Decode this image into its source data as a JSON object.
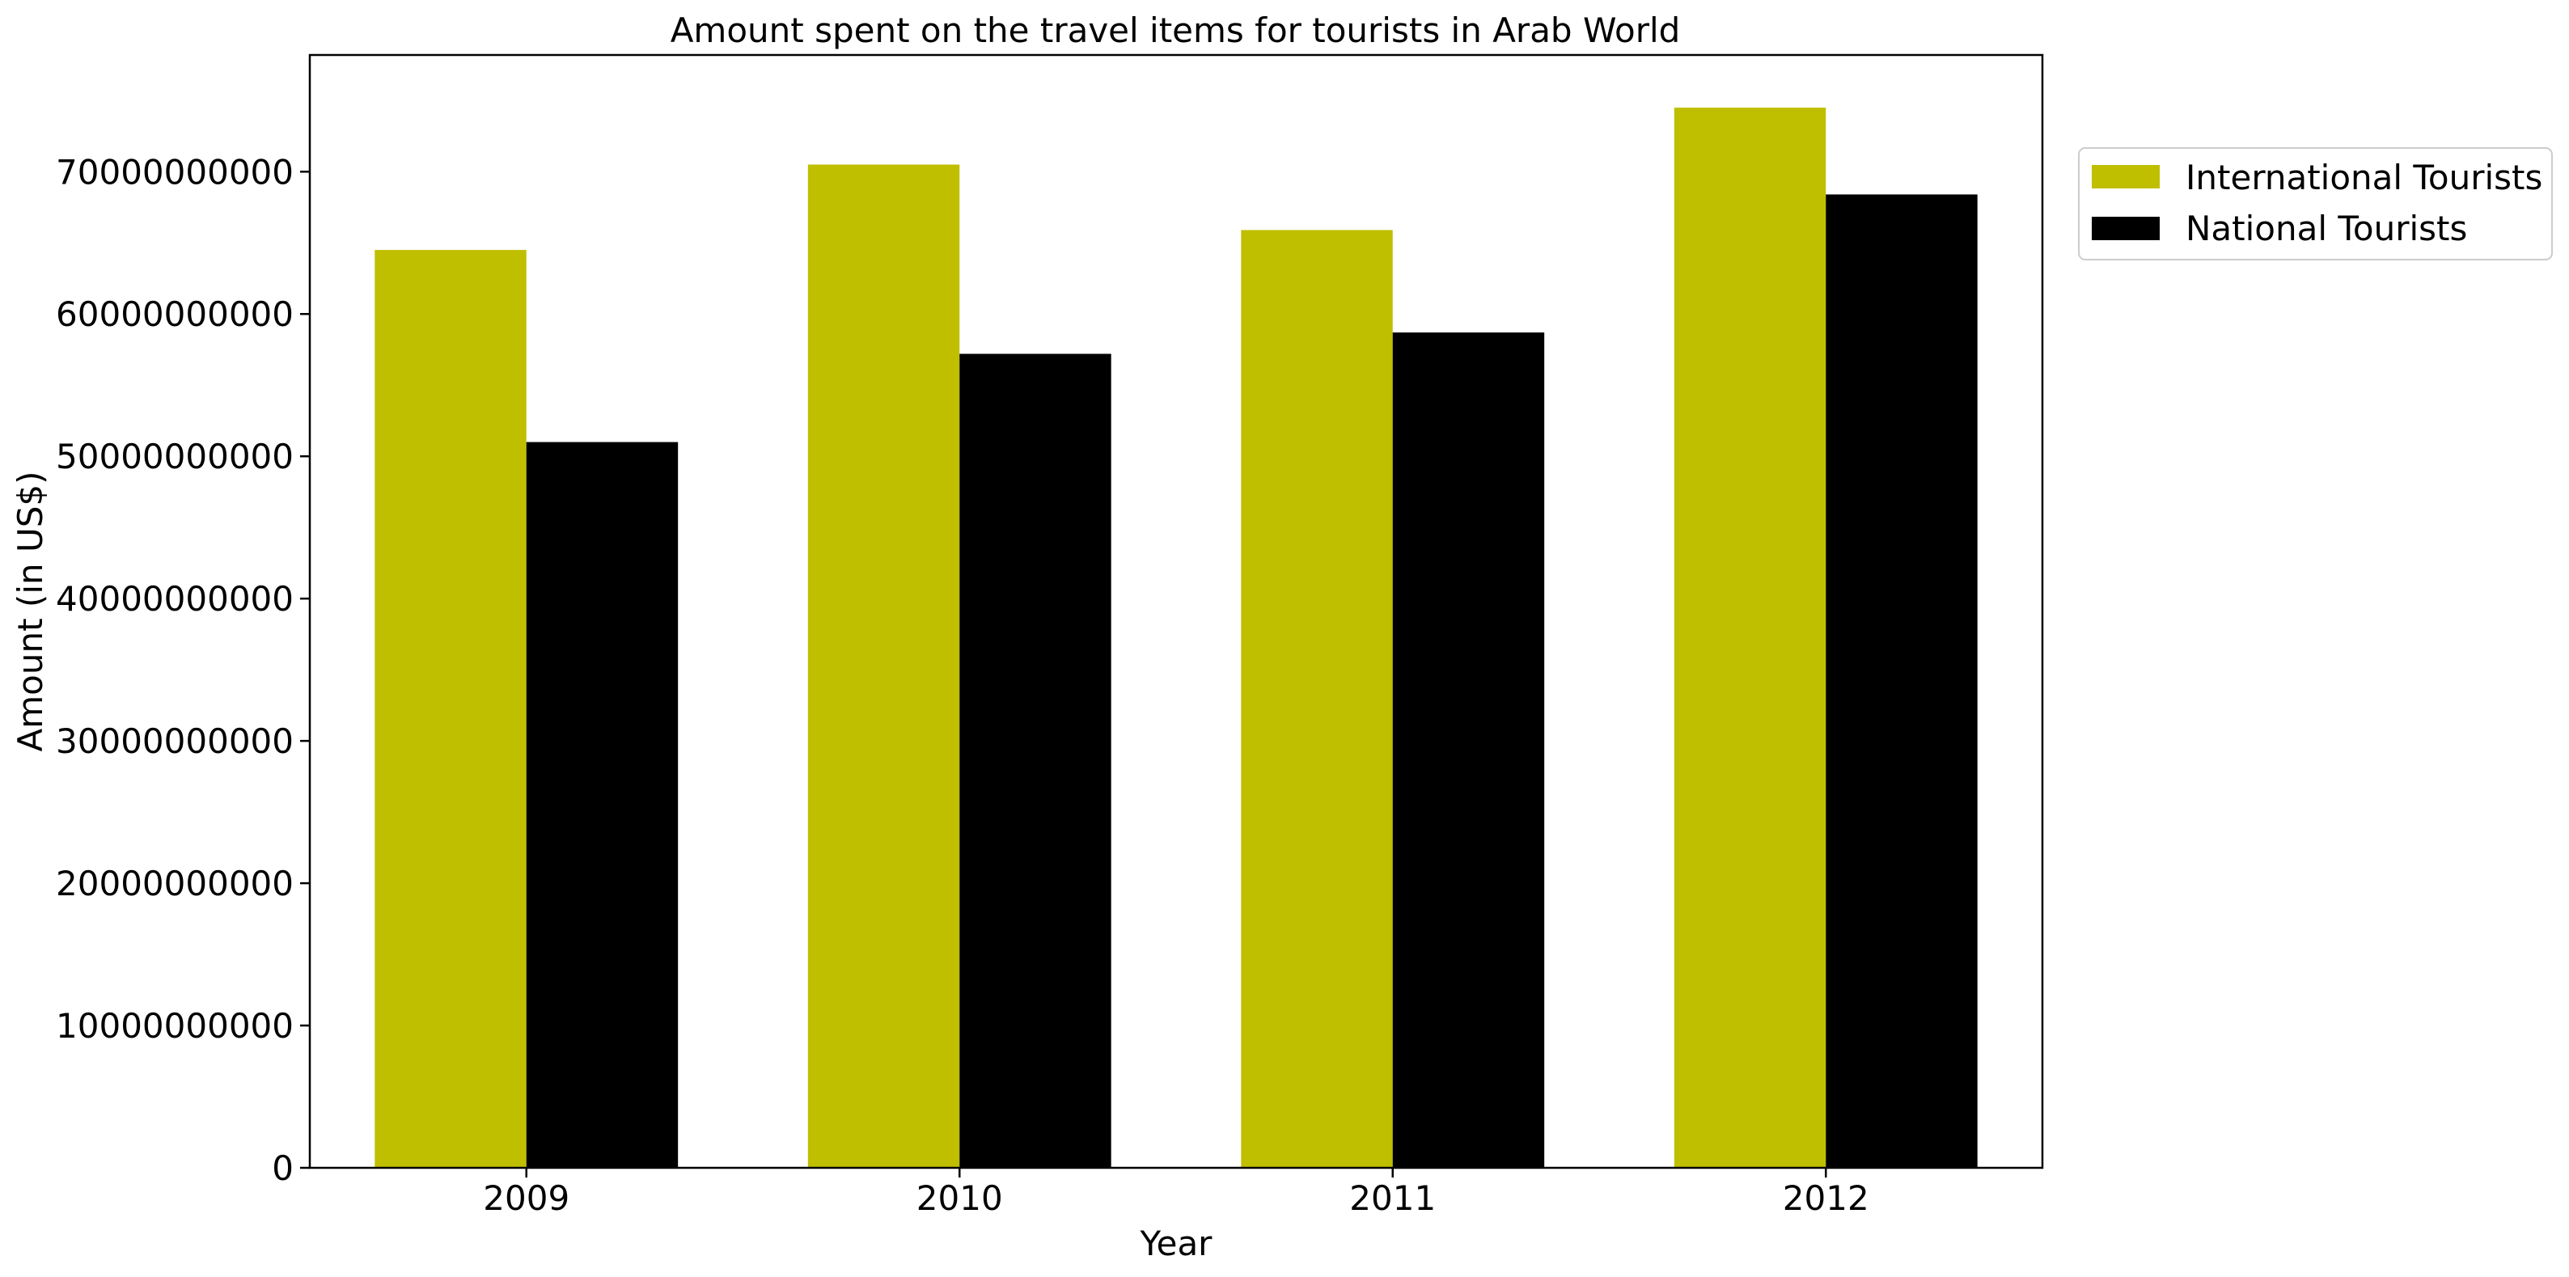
{
  "chart_data": {
    "type": "bar",
    "title": "Amount spent on the travel items for tourists in Arab World",
    "xlabel": "Year",
    "ylabel": "Amount (in US$)",
    "categories": [
      "2009",
      "2010",
      "2011",
      "2012"
    ],
    "series": [
      {
        "name": "International Tourists",
        "color": "#bfbf00",
        "values": [
          64500000000,
          70500000000,
          65900000000,
          74500000000
        ]
      },
      {
        "name": "National Tourists",
        "color": "#000000",
        "values": [
          51000000000,
          57200000000,
          58700000000,
          68400000000
        ]
      }
    ],
    "ylim": [
      0,
      78200000000
    ],
    "yticks": [
      0,
      10000000000,
      20000000000,
      30000000000,
      40000000000,
      50000000000,
      60000000000,
      70000000000
    ],
    "ytick_labels": [
      "0",
      "10000000000",
      "20000000000",
      "30000000000",
      "40000000000",
      "50000000000",
      "60000000000",
      "70000000000"
    ],
    "grid": false,
    "legend_position": "outside upper right"
  }
}
